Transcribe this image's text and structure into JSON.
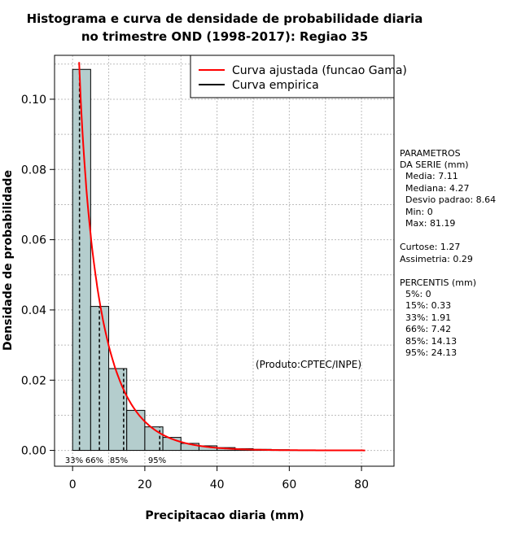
{
  "chart_data": {
    "type": "bar",
    "title_line1": "Histograma e curva de densidade de probabilidade diaria",
    "title_line2": "no trimestre OND (1998-2017): Regiao 35",
    "xlabel": "Precipitacao diaria (mm)",
    "ylabel": "Densidade de probabilidade",
    "xlim": [
      -5,
      89
    ],
    "ylim": [
      -0.0045,
      0.1125
    ],
    "xticks": [
      0,
      20,
      40,
      60,
      80
    ],
    "xtick_labels": [
      "0",
      "20",
      "40",
      "60",
      "80"
    ],
    "yticks": [
      0.0,
      0.02,
      0.04,
      0.06,
      0.08,
      0.1
    ],
    "ytick_labels": [
      "0.00",
      "0.02",
      "0.04",
      "0.06",
      "0.08",
      "0.10"
    ],
    "bins": [
      {
        "x0": 0,
        "x1": 5,
        "density": 0.1085
      },
      {
        "x0": 5,
        "x1": 10,
        "density": 0.041
      },
      {
        "x0": 10,
        "x1": 15,
        "density": 0.0233
      },
      {
        "x0": 15,
        "x1": 20,
        "density": 0.0114
      },
      {
        "x0": 20,
        "x1": 25,
        "density": 0.0067
      },
      {
        "x0": 25,
        "x1": 30,
        "density": 0.0037
      },
      {
        "x0": 30,
        "x1": 35,
        "density": 0.002
      },
      {
        "x0": 35,
        "x1": 40,
        "density": 0.0013
      },
      {
        "x0": 40,
        "x1": 45,
        "density": 0.0008
      },
      {
        "x0": 45,
        "x1": 50,
        "density": 0.0005
      },
      {
        "x0": 50,
        "x1": 55,
        "density": 0.0003
      },
      {
        "x0": 55,
        "x1": 60,
        "density": 0.0002
      },
      {
        "x0": 60,
        "x1": 65,
        "density": 0.0001
      },
      {
        "x0": 65,
        "x1": 70,
        "density": 0.0001
      },
      {
        "x0": 70,
        "x1": 75,
        "density": 5e-05
      },
      {
        "x0": 75,
        "x1": 80,
        "density": 5e-05
      }
    ],
    "gamma_fit": {
      "shape": 0.78,
      "scale": 8.8,
      "x_max": 81.19
    },
    "percentile_lines": [
      {
        "label": "33%",
        "value": 1.91
      },
      {
        "label": "66%",
        "value": 7.42
      },
      {
        "label": "85%",
        "value": 14.13
      },
      {
        "label": "95%",
        "value": 24.13
      }
    ],
    "legend": [
      {
        "label": "Curva ajustada (funcao Gama)",
        "color": "#ff0000"
      },
      {
        "label": "Curva empirica",
        "color": "#000000"
      }
    ],
    "annotation": "(Produto:CPTEC/INPE)",
    "colors": {
      "bar_fill": "#b4cdcd",
      "fit_line": "#ff0000",
      "grid": "#bdbdbd"
    }
  },
  "stats": {
    "header1": "PARAMETROS",
    "header2": "DA SERIE (mm)",
    "media": "Media: 7.11",
    "mediana": "Mediana: 4.27",
    "desvio": "Desvio padrao: 8.64",
    "min": "Min: 0",
    "max": "Max: 81.19",
    "curtose": "Curtose: 1.27",
    "assimetria": "Assimetria: 0.29",
    "percentis_header": "PERCENTIS (mm)",
    "p5": "5%: 0",
    "p15": "15%: 0.33",
    "p33": "33%: 1.91",
    "p66": "66%: 7.42",
    "p85": "85%: 14.13",
    "p95": "95%: 24.13"
  }
}
